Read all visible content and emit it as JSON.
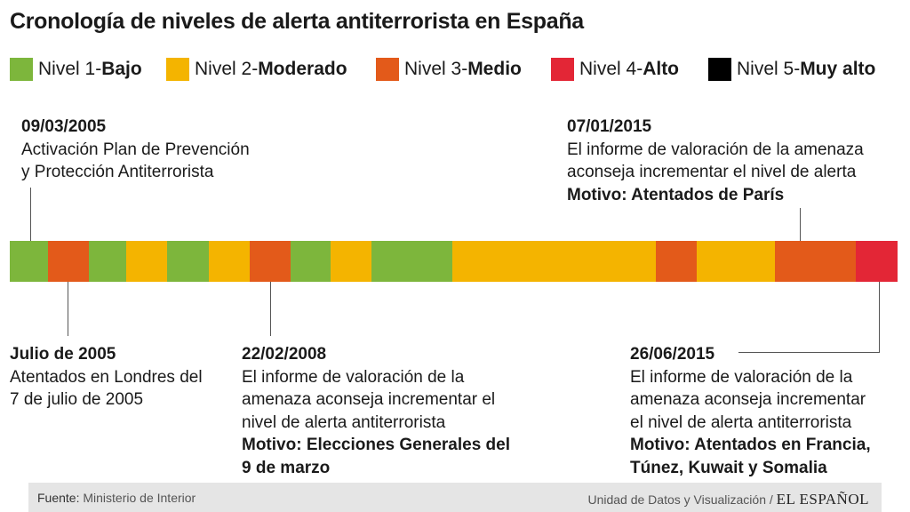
{
  "title": "Cronología de niveles de alerta antiterrorista en España",
  "legend": [
    {
      "prefix": "Nivel 1- ",
      "label": "Bajo",
      "color": "#7db63c"
    },
    {
      "prefix": "Nivel 2- ",
      "label": "Moderado",
      "color": "#f4b400"
    },
    {
      "prefix": "Nivel 3- ",
      "label": "Medio",
      "color": "#e35a1a"
    },
    {
      "prefix": "Nivel 4- ",
      "label": "Alto",
      "color": "#e32636"
    },
    {
      "prefix": "Nivel 5- ",
      "label": "Muy alto",
      "color": "#000000"
    }
  ],
  "timeline_levels": [
    1,
    3,
    1,
    2,
    1,
    2,
    3,
    1,
    2,
    1,
    2,
    3,
    2,
    3,
    4
  ],
  "annotations": [
    {
      "date": "09/03/2005",
      "lines": [
        "Activación Plan de Prevención",
        "y Protección Antiterrorista"
      ],
      "motive": ""
    },
    {
      "date": "Julio de 2005",
      "lines": [
        "Atentados en Londres del",
        "7 de julio de 2005"
      ],
      "motive": ""
    },
    {
      "date": "22/02/2008",
      "lines": [
        "El informe de valoración de la",
        "amenaza aconseja incrementar el",
        "nivel de alerta antiterrorista"
      ],
      "motive": [
        "Motivo: Elecciones Generales del",
        "9 de marzo"
      ]
    },
    {
      "date": "07/01/2015",
      "lines": [
        "El informe de valoración de la amenaza",
        "aconseja incrementar el nivel de alerta"
      ],
      "motive": [
        "Motivo: Atentados de París"
      ]
    },
    {
      "date": "26/06/2015",
      "lines": [
        "El informe de valoración de la",
        "amenaza aconseja incrementar",
        "el nivel de alerta antiterrorista"
      ],
      "motive": [
        "Motivo: Atentados en Francia,",
        "Túnez, Kuwait y Somalia"
      ]
    }
  ],
  "footer": {
    "source_label": "Fuente:",
    "source_value": "Ministerio de Interior",
    "credit": "Unidad de Datos y Visualización /",
    "brand": "EL ESPAÑOL"
  }
}
